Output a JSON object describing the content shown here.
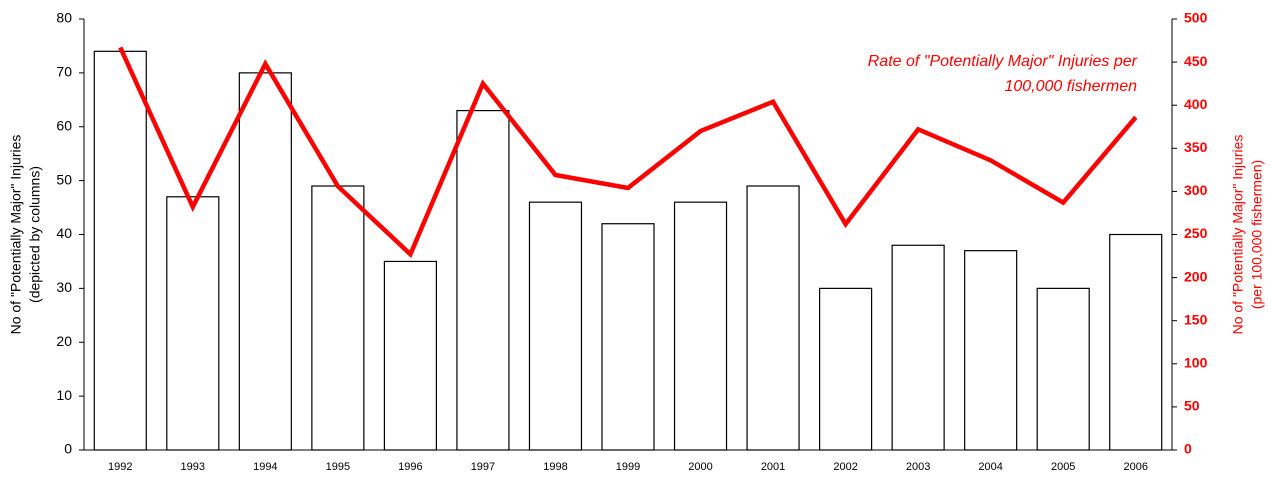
{
  "chart_data": {
    "type": "bar_line",
    "categories": [
      "1992",
      "1993",
      "1994",
      "1995",
      "1996",
      "1997",
      "1998",
      "1999",
      "2000",
      "2001",
      "2002",
      "2003",
      "2004",
      "2005",
      "2006"
    ],
    "series": [
      {
        "name": "No of \"Potentially Major\" Injuries",
        "type": "bar",
        "color": "#ffffff",
        "values": [
          74,
          47,
          70,
          49,
          35,
          63,
          46,
          42,
          46,
          49,
          30,
          38,
          37,
          30,
          40
        ]
      },
      {
        "name": "Rate of \"Potentially Major\" Injuries per 100,000 fishermen",
        "type": "line",
        "axis": "y2",
        "color": "#ff0000",
        "values": [
          467,
          282,
          448,
          306,
          227,
          425,
          319,
          304,
          370,
          404,
          262,
          372,
          336,
          287,
          386
        ]
      }
    ],
    "annotation": [
      "Rate of \"Potentially Major\" Injuries per",
      "100,000 fishermen"
    ],
    "y_label": [
      "No of \"Potentially Major\" Injuries",
      "(depicted by columns)"
    ],
    "y2_label": [
      "No of \"Potentially Major\" Injuries",
      "(per 100,000 fishermen)"
    ],
    "ylim": [
      0,
      80
    ],
    "yticks": [
      0,
      10,
      20,
      30,
      40,
      50,
      60,
      70,
      80
    ],
    "y2lim": [
      0,
      500
    ],
    "y2ticks": [
      0,
      50,
      100,
      150,
      200,
      250,
      300,
      350,
      400,
      450,
      500
    ]
  }
}
